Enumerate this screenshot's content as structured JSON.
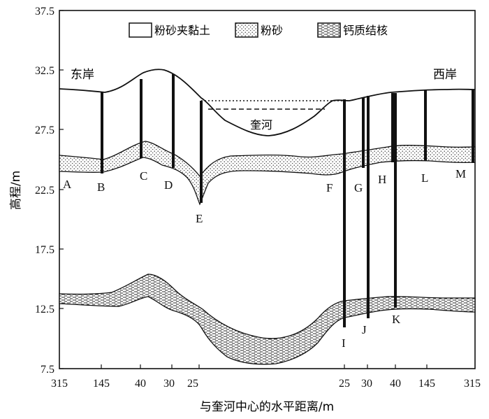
{
  "axes": {
    "ylabel": "高程/m",
    "xlabel": "与奎河中心的水平距离/m",
    "y_ticks": [
      "37.5",
      "32.5",
      "27.5",
      "22.5",
      "17.5",
      "12.5",
      "7.5"
    ],
    "x_ticks": [
      "315",
      "145",
      "40",
      "30",
      "25",
      "25",
      "30",
      "40",
      "145",
      "315"
    ]
  },
  "legend": {
    "items": [
      {
        "label": "粉砂夹黏土",
        "pattern": "blank"
      },
      {
        "label": "粉砂",
        "pattern": "dots"
      },
      {
        "label": "钙质结核",
        "pattern": "dashes"
      }
    ]
  },
  "annotations": {
    "east_bank": "东岸",
    "west_bank": "西岸",
    "river": "奎河"
  },
  "boreholes": [
    "A",
    "B",
    "C",
    "D",
    "E",
    "F",
    "G",
    "H",
    "I",
    "J",
    "K",
    "L",
    "M"
  ],
  "colors": {
    "line": "#111111",
    "background": "#ffffff"
  }
}
